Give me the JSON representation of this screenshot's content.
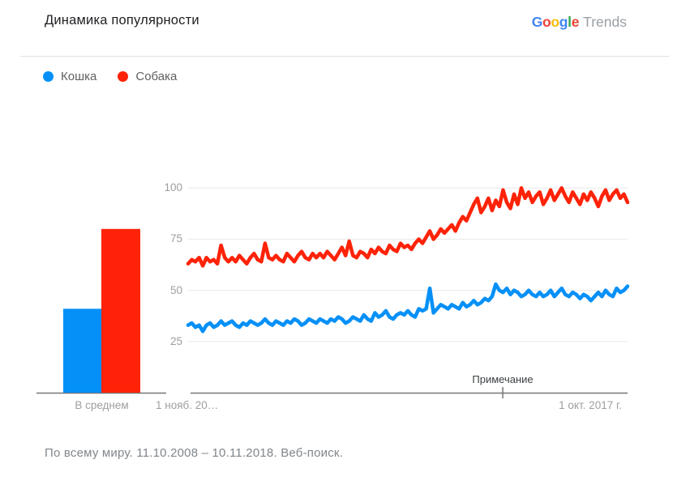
{
  "header": {
    "title": "Динамика популярности",
    "logo": {
      "letters": [
        {
          "ch": "G",
          "color": "#4285f4"
        },
        {
          "ch": "o",
          "color": "#ea4335"
        },
        {
          "ch": "o",
          "color": "#fbbc05"
        },
        {
          "ch": "g",
          "color": "#4285f4"
        },
        {
          "ch": "l",
          "color": "#34a853"
        },
        {
          "ch": "e",
          "color": "#ea4335"
        }
      ],
      "suffix": "Trends",
      "suffix_color": "#9aa0a6"
    }
  },
  "legend": [
    {
      "label": "Кошка",
      "color": "#0590f8"
    },
    {
      "label": "Собака",
      "color": "#fe2308"
    }
  ],
  "footer": {
    "text": "По всему миру. 11.10.2008 – 10.11.2018. Веб-поиск."
  },
  "colors": {
    "blue": "#0590f8",
    "red": "#fe2308",
    "gridline": "#e8e8e8",
    "axis_line": "#757575",
    "tick_label": "#9e9e9e"
  },
  "chart_data": {
    "type": "line",
    "title": "Динамика популярности",
    "ylim": [
      0,
      100
    ],
    "y_ticks": [
      100,
      75,
      50,
      25
    ],
    "grid": true,
    "legend_position": "top-left",
    "bar_panel": {
      "type": "bar",
      "label": "В среднем",
      "values": [
        {
          "name": "Кошка",
          "value": 41,
          "color": "#0590f8"
        },
        {
          "name": "Собака",
          "value": 80,
          "color": "#fe2308"
        }
      ]
    },
    "x_axis": {
      "start_label": "1 нояб. 20…",
      "end_label": "1 окт. 2017 г.",
      "range_note": "11.10.2008 – 10.11.2018, monthly points",
      "annotation": {
        "label": "Примечание",
        "x_fraction": 0.716
      }
    },
    "series": [
      {
        "name": "Кошка",
        "color": "#0590f8",
        "values": [
          33,
          34,
          32,
          33,
          30,
          33,
          34,
          32,
          33,
          35,
          33,
          34,
          35,
          33,
          32,
          34,
          33,
          35,
          34,
          33,
          34,
          36,
          34,
          33,
          35,
          34,
          33,
          35,
          34,
          36,
          35,
          33,
          34,
          36,
          35,
          34,
          36,
          35,
          34,
          36,
          35,
          37,
          36,
          34,
          35,
          37,
          36,
          35,
          38,
          36,
          35,
          39,
          37,
          38,
          40,
          37,
          36,
          38,
          39,
          38,
          40,
          38,
          37,
          41,
          40,
          41,
          51,
          39,
          41,
          43,
          42,
          41,
          43,
          42,
          41,
          44,
          42,
          43,
          45,
          43,
          44,
          46,
          45,
          47,
          53,
          50,
          49,
          51,
          48,
          50,
          49,
          47,
          48,
          50,
          48,
          47,
          49,
          47,
          48,
          50,
          47,
          49,
          51,
          48,
          47,
          49,
          48,
          46,
          48,
          47,
          45,
          47,
          49,
          47,
          50,
          48,
          47,
          51,
          49,
          50,
          52
        ]
      },
      {
        "name": "Собака",
        "color": "#fe2308",
        "values": [
          63,
          65,
          64,
          66,
          62,
          66,
          64,
          65,
          63,
          72,
          66,
          64,
          66,
          64,
          67,
          65,
          63,
          66,
          68,
          65,
          64,
          73,
          66,
          65,
          67,
          65,
          64,
          68,
          66,
          64,
          67,
          69,
          66,
          65,
          68,
          66,
          68,
          66,
          69,
          67,
          65,
          68,
          71,
          67,
          74,
          67,
          66,
          69,
          68,
          66,
          70,
          68,
          71,
          69,
          68,
          72,
          70,
          69,
          73,
          71,
          72,
          70,
          73,
          75,
          73,
          76,
          79,
          75,
          77,
          80,
          78,
          80,
          82,
          79,
          83,
          86,
          84,
          88,
          92,
          95,
          88,
          91,
          95,
          89,
          94,
          91,
          99,
          93,
          90,
          97,
          92,
          100,
          95,
          98,
          93,
          96,
          98,
          92,
          95,
          99,
          94,
          97,
          100,
          96,
          93,
          98,
          95,
          92,
          97,
          94,
          98,
          95,
          91,
          96,
          99,
          94,
          97,
          99,
          95,
          97,
          93
        ]
      }
    ]
  }
}
